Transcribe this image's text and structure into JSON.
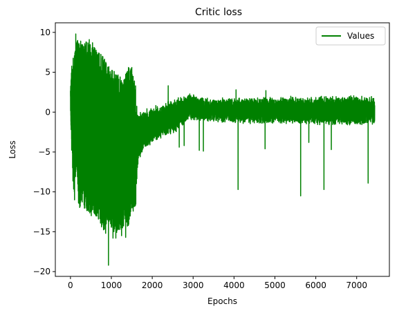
{
  "chart_data": {
    "type": "line",
    "title": "Critic loss",
    "xlabel": "Epochs",
    "ylabel": "Loss",
    "xlim": [
      -370,
      7800
    ],
    "ylim": [
      -20.6,
      11.2
    ],
    "xticks": [
      0,
      1000,
      2000,
      3000,
      4000,
      5000,
      6000,
      7000
    ],
    "yticks": [
      -20,
      -15,
      -10,
      -5,
      0,
      5,
      10
    ],
    "legend": {
      "position": "top-right"
    },
    "grid": false,
    "series": [
      {
        "name": "Values",
        "color": "#008000",
        "n_points": 7440,
        "envelope": [
          {
            "x": 0,
            "lo": -0.5,
            "hi": 3.0
          },
          {
            "x": 50,
            "lo": -8.0,
            "hi": 7.5
          },
          {
            "x": 100,
            "lo": -11.0,
            "hi": 7.2
          },
          {
            "x": 150,
            "lo": -6.0,
            "hi": 9.8
          },
          {
            "x": 200,
            "lo": -12.0,
            "hi": 8.8
          },
          {
            "x": 300,
            "lo": -12.0,
            "hi": 8.5
          },
          {
            "x": 400,
            "lo": -12.5,
            "hi": 8.8
          },
          {
            "x": 500,
            "lo": -13.0,
            "hi": 8.8
          },
          {
            "x": 600,
            "lo": -13.0,
            "hi": 8.0
          },
          {
            "x": 700,
            "lo": -13.5,
            "hi": 7.5
          },
          {
            "x": 800,
            "lo": -15.0,
            "hi": 7.0
          },
          {
            "x": 900,
            "lo": -14.0,
            "hi": 6.0
          },
          {
            "x": 1000,
            "lo": -15.0,
            "hi": 5.5
          },
          {
            "x": 1100,
            "lo": -15.0,
            "hi": 5.0
          },
          {
            "x": 1200,
            "lo": -15.5,
            "hi": 4.5
          },
          {
            "x": 1300,
            "lo": -15.0,
            "hi": 4.0
          },
          {
            "x": 1400,
            "lo": -15.0,
            "hi": 5.5
          },
          {
            "x": 1500,
            "lo": -12.5,
            "hi": 5.5
          },
          {
            "x": 1590,
            "lo": -12.5,
            "hi": 3.5
          },
          {
            "x": 1650,
            "lo": -7.0,
            "hi": 0.0
          },
          {
            "x": 1800,
            "lo": -5.0,
            "hi": 0.5
          },
          {
            "x": 2000,
            "lo": -4.0,
            "hi": 0.8
          },
          {
            "x": 2200,
            "lo": -3.5,
            "hi": 1.0
          },
          {
            "x": 2400,
            "lo": -3.0,
            "hi": 1.5
          },
          {
            "x": 2600,
            "lo": -2.5,
            "hi": 2.0
          },
          {
            "x": 2800,
            "lo": -1.5,
            "hi": 2.2
          },
          {
            "x": 3000,
            "lo": -1.0,
            "hi": 2.5
          },
          {
            "x": 3200,
            "lo": -1.2,
            "hi": 2.0
          },
          {
            "x": 3500,
            "lo": -1.3,
            "hi": 1.8
          },
          {
            "x": 4000,
            "lo": -1.4,
            "hi": 1.8
          },
          {
            "x": 4500,
            "lo": -1.5,
            "hi": 1.9
          },
          {
            "x": 5000,
            "lo": -1.5,
            "hi": 2.0
          },
          {
            "x": 5500,
            "lo": -1.6,
            "hi": 2.0
          },
          {
            "x": 6000,
            "lo": -1.6,
            "hi": 2.0
          },
          {
            "x": 6500,
            "lo": -1.7,
            "hi": 2.1
          },
          {
            "x": 7000,
            "lo": -1.7,
            "hi": 2.1
          },
          {
            "x": 7440,
            "lo": -1.7,
            "hi": 2.0
          }
        ],
        "spikes": [
          {
            "x": 60,
            "y": -8.3
          },
          {
            "x": 100,
            "y": -11.0
          },
          {
            "x": 130,
            "y": 9.8
          },
          {
            "x": 250,
            "y": 8.9
          },
          {
            "x": 380,
            "y": 8.8
          },
          {
            "x": 460,
            "y": 9.1
          },
          {
            "x": 540,
            "y": 8.7
          },
          {
            "x": 860,
            "y": -15.2
          },
          {
            "x": 930,
            "y": -19.2
          },
          {
            "x": 1040,
            "y": -15.8
          },
          {
            "x": 1110,
            "y": -15.8
          },
          {
            "x": 1250,
            "y": -15.5
          },
          {
            "x": 1350,
            "y": -15.7
          },
          {
            "x": 1420,
            "y": 5.6
          },
          {
            "x": 1500,
            "y": 5.6
          },
          {
            "x": 2390,
            "y": 3.3
          },
          {
            "x": 2660,
            "y": -4.4
          },
          {
            "x": 2780,
            "y": -4.2
          },
          {
            "x": 3150,
            "y": -4.8
          },
          {
            "x": 3250,
            "y": -4.9
          },
          {
            "x": 4050,
            "y": 2.8
          },
          {
            "x": 4100,
            "y": -9.7
          },
          {
            "x": 4760,
            "y": -4.6
          },
          {
            "x": 4780,
            "y": 2.7
          },
          {
            "x": 5630,
            "y": -10.5
          },
          {
            "x": 5830,
            "y": -3.8
          },
          {
            "x": 6200,
            "y": -9.7
          },
          {
            "x": 6380,
            "y": -4.7
          },
          {
            "x": 7280,
            "y": -8.9
          }
        ]
      }
    ]
  }
}
